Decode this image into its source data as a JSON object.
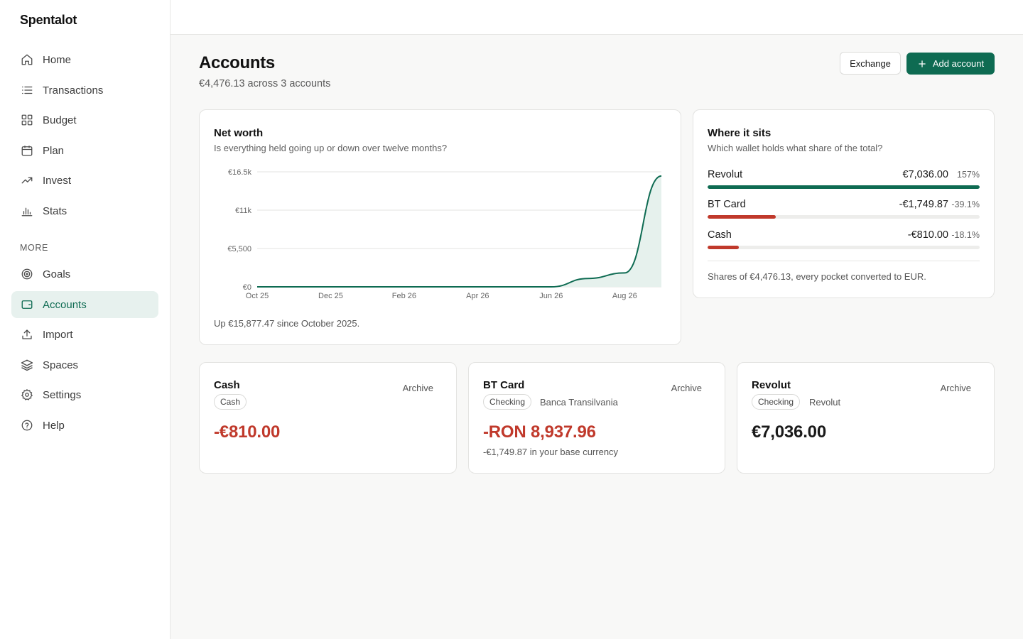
{
  "app": {
    "name": "Spentalot"
  },
  "sidebar": {
    "items": [
      {
        "label": "Home",
        "icon": "home-icon"
      },
      {
        "label": "Transactions",
        "icon": "list-icon"
      },
      {
        "label": "Budget",
        "icon": "grid-icon"
      },
      {
        "label": "Plan",
        "icon": "calendar-icon"
      },
      {
        "label": "Invest",
        "icon": "trending-up-icon"
      },
      {
        "label": "Stats",
        "icon": "bar-chart-icon"
      }
    ],
    "section_label": "MORE",
    "more_items": [
      {
        "label": "Goals",
        "icon": "target-icon"
      },
      {
        "label": "Accounts",
        "icon": "wallet-icon",
        "active": true
      },
      {
        "label": "Import",
        "icon": "upload-icon"
      },
      {
        "label": "Spaces",
        "icon": "layers-icon"
      },
      {
        "label": "Settings",
        "icon": "gear-icon"
      },
      {
        "label": "Help",
        "icon": "help-circle-icon"
      }
    ]
  },
  "header": {
    "title": "Accounts",
    "subtitle": "€4,476.13 across 3 accounts",
    "exchange_label": "Exchange",
    "add_label": "Add account"
  },
  "net_worth": {
    "title": "Net worth",
    "subtitle": "Is everything held going up or down over twelve months?",
    "footer": "Up €15,877.47 since October 2025."
  },
  "chart_data": {
    "type": "area",
    "title": "Net worth",
    "x": [
      "Oct 25",
      "Nov 25",
      "Dec 25",
      "Jan 26",
      "Feb 26",
      "Mar 26",
      "Apr 26",
      "May 26",
      "Jun 26",
      "Jul 26",
      "Aug 26",
      "Sep 26"
    ],
    "x_tick_labels": [
      "Oct 25",
      "Dec 25",
      "Feb 26",
      "Apr 26",
      "Jun 26",
      "Aug 26"
    ],
    "values": [
      0,
      0,
      0,
      0,
      0,
      0,
      0,
      0,
      0,
      1200,
      2000,
      15900
    ],
    "y_tick_labels": [
      "€0",
      "€5,500",
      "€11k",
      "€16.5k"
    ],
    "y_ticks": [
      0,
      5500,
      11000,
      16500
    ],
    "ylim": [
      0,
      16500
    ],
    "grid": true,
    "colors": {
      "line": "#0e6b52",
      "fill": "#e6f1ed"
    }
  },
  "shares": {
    "title": "Where it sits",
    "subtitle": "Which wallet holds what share of the total?",
    "rows": [
      {
        "name": "Revolut",
        "amount": "€7,036.00",
        "pct": "157%",
        "fraction": 1.0,
        "color": "#0e6b52"
      },
      {
        "name": "BT Card",
        "amount": "-€1,749.87",
        "pct": "-39.1%",
        "fraction": 0.25,
        "color": "#c0392b"
      },
      {
        "name": "Cash",
        "amount": "-€810.00",
        "pct": "-18.1%",
        "fraction": 0.115,
        "color": "#c0392b"
      }
    ],
    "footer": "Shares of €4,476.13, every pocket converted to EUR."
  },
  "accounts": [
    {
      "name": "Cash",
      "type": "Cash",
      "institution": "",
      "balance": "-€810.00",
      "negative": true,
      "base": "",
      "archive": "Archive"
    },
    {
      "name": "BT Card",
      "type": "Checking",
      "institution": "Banca Transilvania",
      "balance": "-RON 8,937.96",
      "negative": true,
      "base": "-€1,749.87 in your base currency",
      "archive": "Archive"
    },
    {
      "name": "Revolut",
      "type": "Checking",
      "institution": "Revolut",
      "balance": "€7,036.00",
      "negative": false,
      "base": "",
      "archive": "Archive"
    }
  ]
}
